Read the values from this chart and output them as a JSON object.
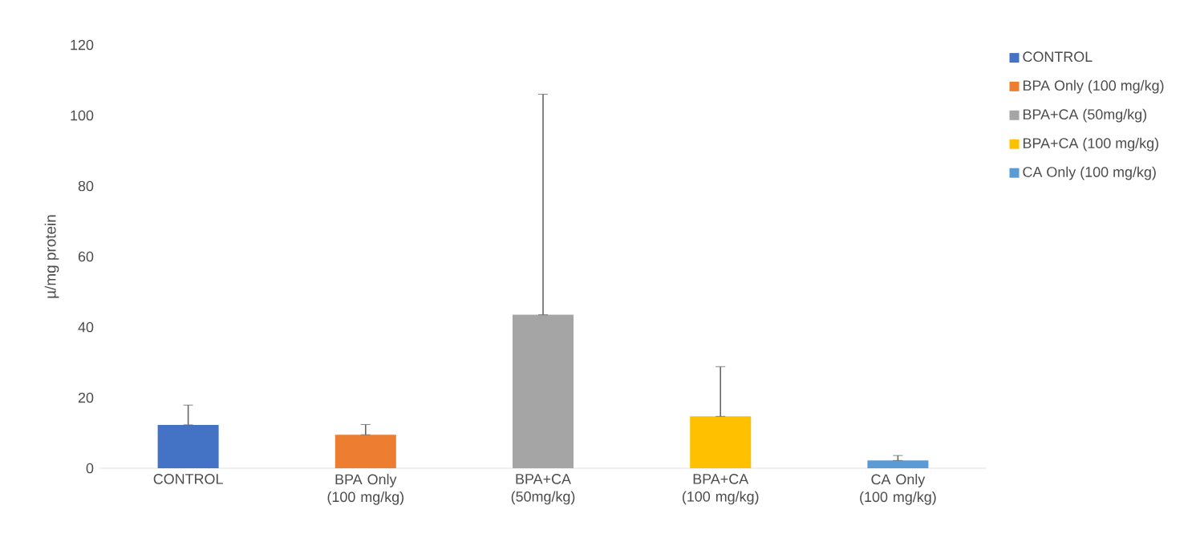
{
  "chart_data": {
    "type": "bar",
    "ylabel": "µ/mg protein",
    "categories": [
      "CONTROL",
      "BPA Only (100 mg/kg)",
      "BPA+CA (50mg/kg)",
      "BPA+CA (100 mg/kg)",
      "CA Only (100 mg/kg)"
    ],
    "series": [
      {
        "name": "CONTROL",
        "color": "#4472c4",
        "values": [
          12.3,
          null,
          null,
          null,
          null
        ],
        "errors": [
          [
            12.3,
            17.9
          ],
          null,
          null,
          null,
          null
        ]
      },
      {
        "name": "BPA Only (100 mg/kg)",
        "color": "#ed7d31",
        "values": [
          null,
          9.5,
          null,
          null,
          null
        ],
        "errors": [
          null,
          [
            9.5,
            12.4
          ],
          null,
          null,
          null
        ]
      },
      {
        "name": "BPA+CA (50mg/kg)",
        "color": "#a5a5a5",
        "values": [
          null,
          null,
          43.5,
          null,
          null
        ],
        "errors": [
          null,
          null,
          [
            43.5,
            106
          ],
          null,
          null
        ]
      },
      {
        "name": "BPA+CA (100 mg/kg)",
        "color": "#ffc000",
        "values": [
          null,
          null,
          null,
          14.7,
          null
        ],
        "errors": [
          null,
          null,
          null,
          [
            14.7,
            28.8
          ],
          null
        ]
      },
      {
        "name": "CA Only (100 mg/kg)",
        "color": "#5b9bd5",
        "values": [
          null,
          null,
          null,
          null,
          2.2
        ],
        "errors": [
          null,
          null,
          null,
          null,
          [
            2.2,
            3.6
          ]
        ]
      }
    ],
    "ylim": [
      0,
      120
    ],
    "yticks": [
      0,
      20,
      40,
      60,
      80,
      100,
      120
    ],
    "grid": false,
    "legend": "right"
  }
}
